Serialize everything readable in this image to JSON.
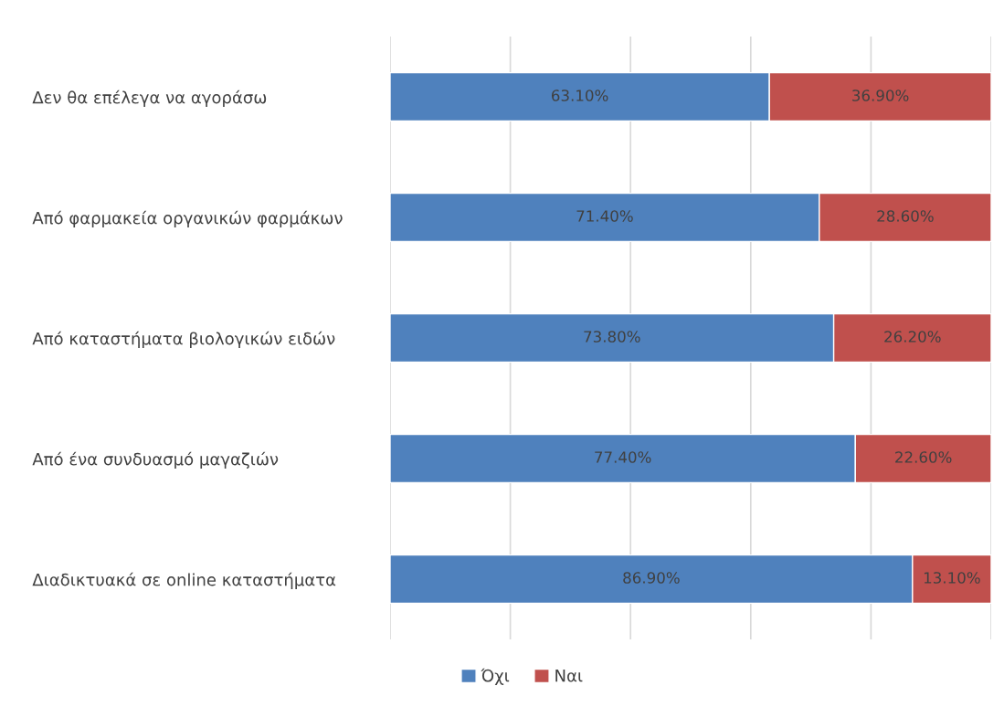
{
  "chart_data": {
    "type": "bar",
    "orientation": "horizontal",
    "stacked": true,
    "categories": [
      "Δεν θα επέλεγα να αγοράσω",
      "Από φαρμακεία οργανικών φαρμάκων",
      "Από καταστήματα βιολογικών ειδών",
      "Από ένα συνδυασμό μαγαζιών",
      "Διαδικτυακά σε online καταστήματα"
    ],
    "series": [
      {
        "name": "Όχι",
        "color": "#4f81bd",
        "values": [
          63.1,
          71.4,
          73.8,
          77.4,
          86.9
        ],
        "value_labels": [
          "63.10%",
          "71.40%",
          "73.80%",
          "77.40%",
          "86.90%"
        ]
      },
      {
        "name": "Ναι",
        "color": "#c0504d",
        "values": [
          36.9,
          28.6,
          26.2,
          22.6,
          13.1
        ],
        "value_labels": [
          "36.90%",
          "28.60%",
          "26.20%",
          "22.60%",
          "13.10%"
        ]
      }
    ],
    "xlim": [
      0,
      100
    ],
    "xticks": [
      {
        "value": 0,
        "label": null
      },
      {
        "value": 20,
        "label": null
      },
      {
        "value": 40,
        "label": null
      },
      {
        "value": 60,
        "label": null
      },
      {
        "value": 80,
        "label": null
      },
      {
        "value": 100,
        "label": null
      }
    ],
    "tick_labels": "y",
    "grid": "x",
    "legend": "bottom"
  }
}
